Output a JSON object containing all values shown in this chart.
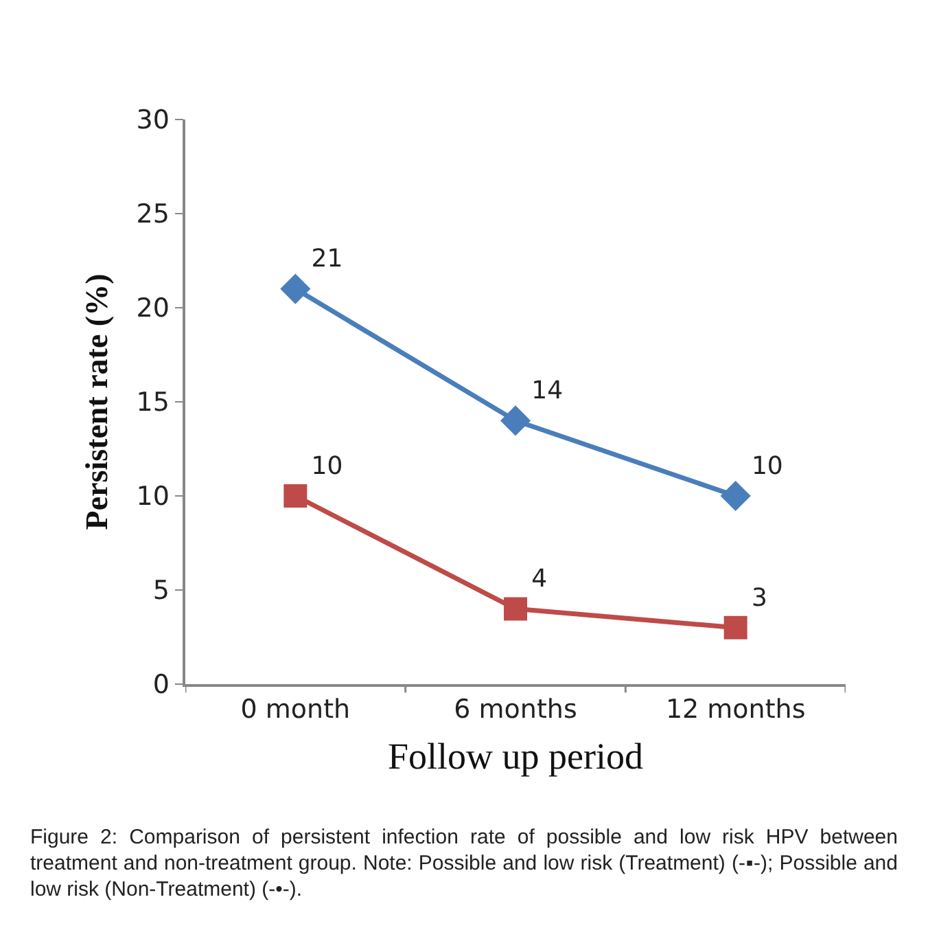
{
  "chart_data": {
    "type": "line",
    "xlabel": "Follow up period",
    "ylabel": "Persistent rate (%)",
    "categories": [
      "0 month",
      "6 months",
      "12 months"
    ],
    "series": [
      {
        "color": "#4a7ebb",
        "marker": "diamond",
        "values": [
          21,
          14,
          10
        ]
      },
      {
        "color": "#be4b48",
        "marker": "square",
        "values": [
          10,
          4,
          3
        ]
      }
    ],
    "ylim": [
      0,
      30
    ],
    "yticks": [
      0,
      5,
      10,
      15,
      20,
      25,
      30
    ],
    "grid": false,
    "data_labels": true,
    "line_style": "solid",
    "annotations": [
      "Figure 2: Comparison of persistent infection rate of possible and low risk HPV between treatment and non-treatment group. Note: Possible and low risk (Treatment) (-▪-); Possible and low risk (Non-Treatment) (-•-)."
    ]
  }
}
